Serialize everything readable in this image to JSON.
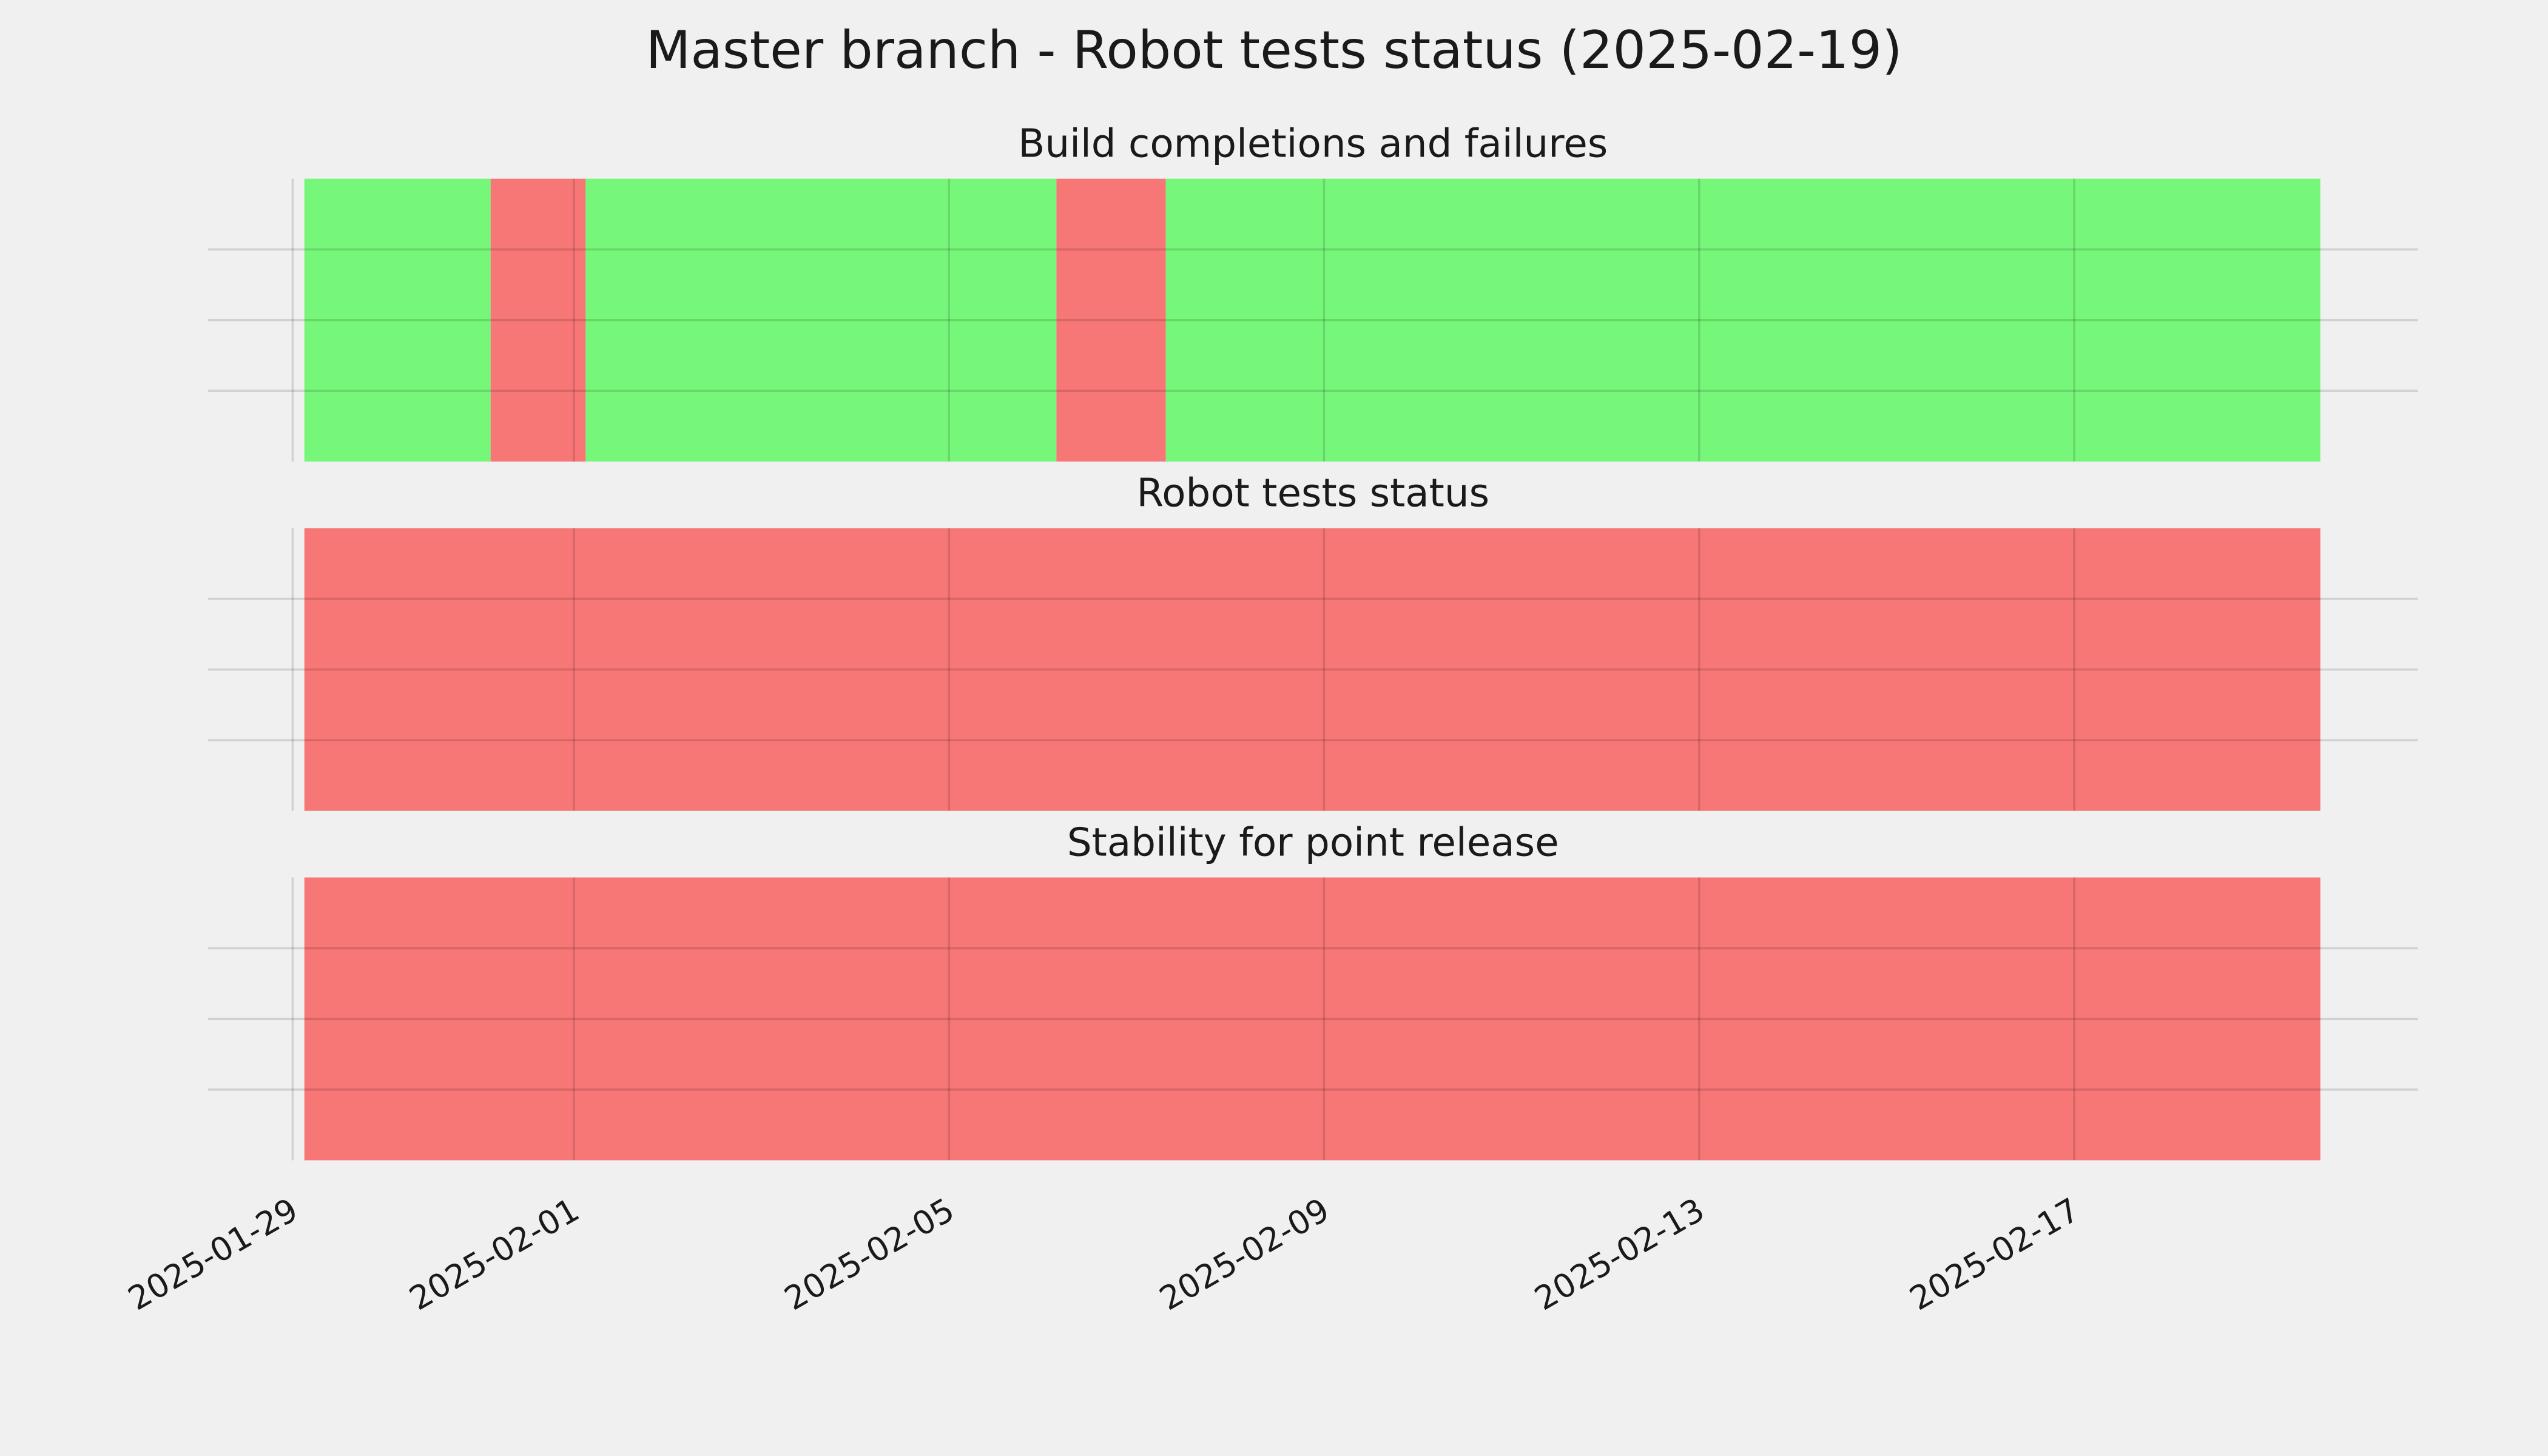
{
  "title": "Master branch - Robot tests status (2025-02-19)",
  "chart_data": [
    {
      "type": "timeline",
      "title": "Build completions and failures",
      "segments": [
        {
          "start": "2025-01-29T03:00",
          "end": "2025-01-31T02:40",
          "color": "#77f77a"
        },
        {
          "start": "2025-01-31T02:40",
          "end": "2025-02-01T03:00",
          "color": "#f77676"
        },
        {
          "start": "2025-02-01T03:00",
          "end": "2025-02-06T03:30",
          "color": "#77f77a"
        },
        {
          "start": "2025-02-06T03:30",
          "end": "2025-02-07T07:30",
          "color": "#f77676"
        },
        {
          "start": "2025-02-07T07:30",
          "end": "2025-02-19T15:00",
          "color": "#77f77a"
        }
      ],
      "xlim": [
        "2025-01-28T02:20",
        "2025-02-20T16:00"
      ],
      "xticks": [
        "2025-01-29",
        "2025-02-01",
        "2025-02-05",
        "2025-02-09",
        "2025-02-13",
        "2025-02-17"
      ],
      "ylim": [
        0,
        1
      ],
      "yticks": [
        0.25,
        0.5,
        0.75
      ],
      "grid": true
    },
    {
      "type": "timeline",
      "title": "Robot tests status",
      "segments": [
        {
          "start": "2025-01-29T03:00",
          "end": "2025-02-19T15:00",
          "color": "#f77676"
        }
      ],
      "xlim": [
        "2025-01-28T02:20",
        "2025-02-20T16:00"
      ],
      "xticks": [
        "2025-01-29",
        "2025-02-01",
        "2025-02-05",
        "2025-02-09",
        "2025-02-13",
        "2025-02-17"
      ],
      "ylim": [
        0,
        1
      ],
      "yticks": [
        0.25,
        0.5,
        0.75
      ],
      "grid": true
    },
    {
      "type": "timeline",
      "title": "Stability for point release",
      "segments": [
        {
          "start": "2025-01-29T03:00",
          "end": "2025-02-19T15:00",
          "color": "#f77676"
        }
      ],
      "xlim": [
        "2025-01-28T02:20",
        "2025-02-20T16:00"
      ],
      "xticks": [
        "2025-01-29",
        "2025-02-01",
        "2025-02-05",
        "2025-02-09",
        "2025-02-13",
        "2025-02-17"
      ],
      "ylim": [
        0,
        1
      ],
      "yticks": [
        0.25,
        0.5,
        0.75
      ],
      "grid": true
    }
  ]
}
